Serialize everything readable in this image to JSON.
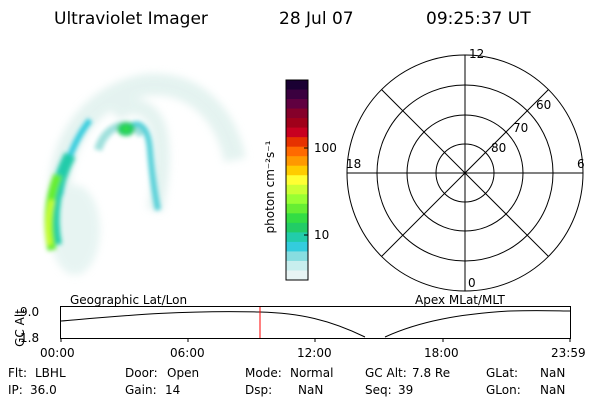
{
  "header": {
    "title": "Ultraviolet Imager",
    "date": "28 Jul 07",
    "time": "09:25:37 UT"
  },
  "colorbar": {
    "unit_label": "photon cm⁻²s⁻¹",
    "ticks": [
      "100",
      "10"
    ],
    "colors": [
      "#1a0033",
      "#3a003f",
      "#600040",
      "#85002a",
      "#a0001a",
      "#c80020",
      "#e63200",
      "#ff6a00",
      "#ff9900",
      "#ffcc00",
      "#ffff33",
      "#ccff33",
      "#99ff33",
      "#66ee33",
      "#33dd44",
      "#22cc66",
      "#22ccaa",
      "#33ccdd",
      "#88dde0",
      "#c8eeee",
      "#e8f4f4"
    ]
  },
  "polar": {
    "mlt_labels": {
      "top": "12",
      "left": "18",
      "right": "6",
      "bottom": "0"
    },
    "lat_labels": [
      "60",
      "70",
      "80"
    ]
  },
  "timeline": {
    "left_title": "Geographic Lat/Lon",
    "right_title": "Apex MLat/MLT",
    "axis_label": "GC Alt",
    "y_ticks": [
      "9.0",
      "1.8"
    ],
    "x_ticks": [
      "00:00",
      "06:00",
      "12:00",
      "18:00",
      "23:59"
    ],
    "current_marker_color": "#ff0000"
  },
  "status": {
    "row1": [
      {
        "label": "Flt:",
        "value": "LBHL"
      },
      {
        "label": "Door:",
        "value": "Open"
      },
      {
        "label": "Mode:",
        "value": "Normal"
      },
      {
        "label": "GC Alt:",
        "value": "7.8 Re"
      },
      {
        "label": "GLat:",
        "value": "NaN"
      }
    ],
    "row2": [
      {
        "label": "IP:",
        "value": "36.0"
      },
      {
        "label": "Gain:",
        "value": "14"
      },
      {
        "label": "Dsp:",
        "value": "NaN"
      },
      {
        "label": "Seq:",
        "value": "39"
      },
      {
        "label": "GLon:",
        "value": "NaN"
      }
    ]
  }
}
